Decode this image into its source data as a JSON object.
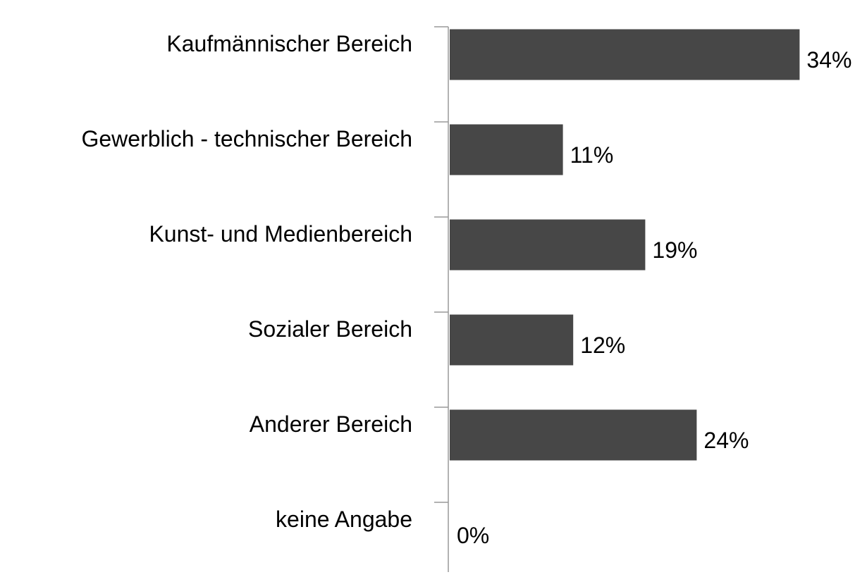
{
  "chart_data": {
    "type": "bar",
    "orientation": "horizontal",
    "categories": [
      "Kaufmännischer Bereich",
      "Gewerblich - technischer Bereich",
      "Kunst- und Medienbereich",
      "Sozialer Bereich",
      "Anderer Bereich",
      "keine Angabe"
    ],
    "values": [
      34,
      11,
      19,
      12,
      24,
      0
    ],
    "value_labels": [
      "34%",
      "11%",
      "19%",
      "12%",
      "24%",
      "0%"
    ],
    "color": "#474747"
  }
}
